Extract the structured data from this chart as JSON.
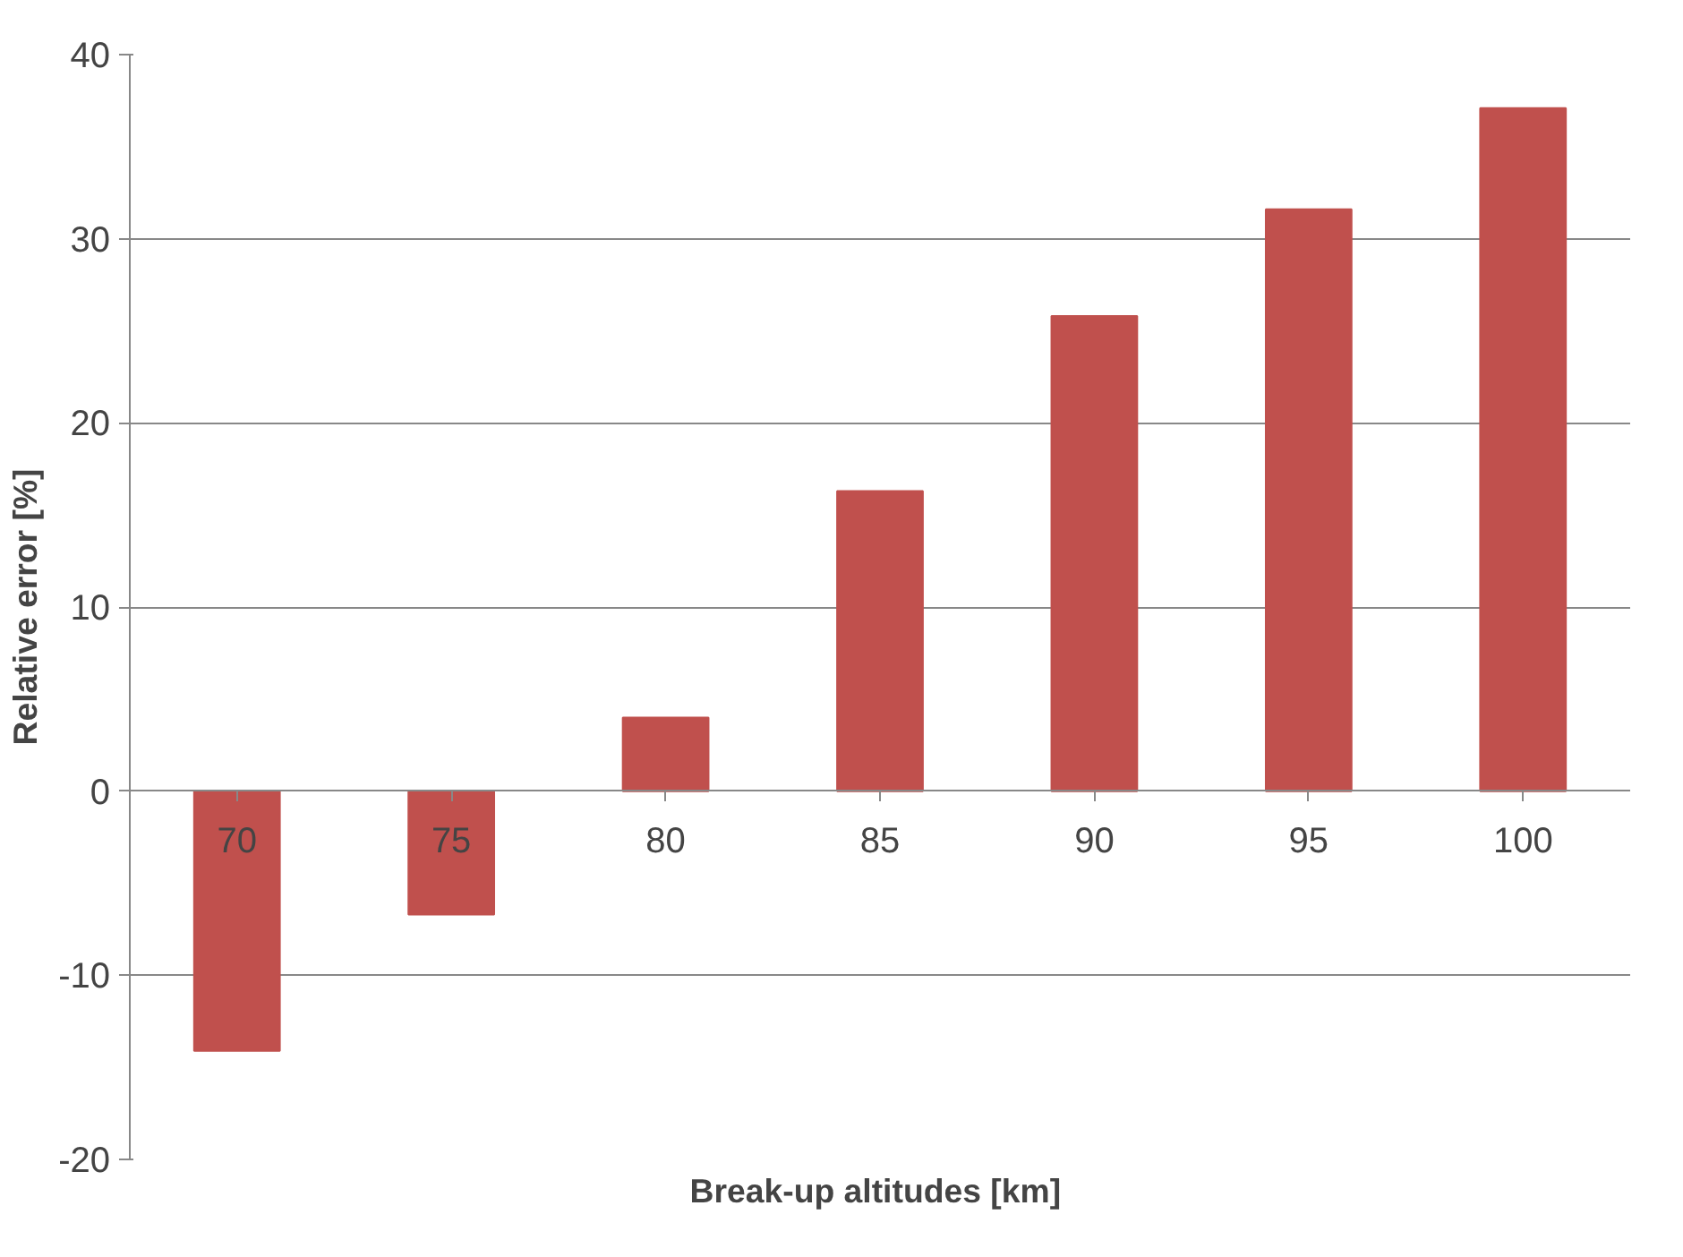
{
  "chart_data": {
    "type": "bar",
    "xlabel": "Break-up altitudes  [km]",
    "ylabel": "Relative error [%]",
    "categories": [
      "70",
      "75",
      "80",
      "85",
      "90",
      "95",
      "100"
    ],
    "series": [
      {
        "color": "#c0504d",
        "values": [
          -14.1,
          -6.7,
          4.0,
          16.3,
          25.8,
          31.6,
          37.1
        ]
      }
    ],
    "ylim": [
      -20,
      40
    ],
    "yticks": [
      -20,
      -10,
      0,
      10,
      20,
      30,
      40
    ],
    "grid": "y"
  }
}
